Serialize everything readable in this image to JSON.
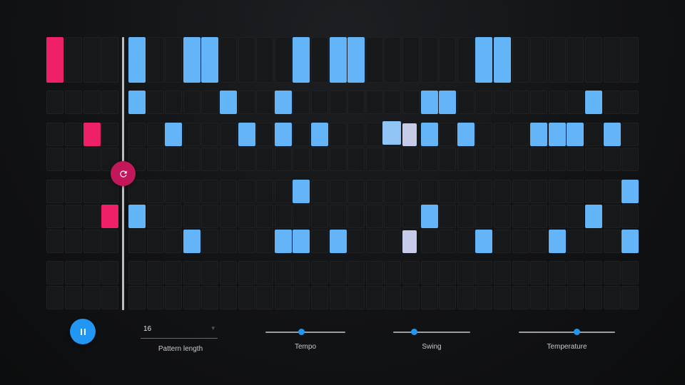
{
  "sequencer": {
    "columns": 32,
    "seed_columns": 4,
    "row_count": 9,
    "seed_cells": [
      [
        0,
        0
      ],
      [
        2,
        2
      ],
      [
        5,
        3
      ]
    ],
    "generated_cells": [
      [
        0,
        4
      ],
      [
        0,
        7
      ],
      [
        0,
        8
      ],
      [
        0,
        13
      ],
      [
        0,
        15
      ],
      [
        0,
        16
      ],
      [
        0,
        23
      ],
      [
        0,
        24
      ],
      [
        1,
        4
      ],
      [
        1,
        9
      ],
      [
        1,
        12
      ],
      [
        1,
        20
      ],
      [
        1,
        21
      ],
      [
        1,
        29
      ],
      [
        2,
        6
      ],
      [
        2,
        10
      ],
      [
        2,
        12
      ],
      [
        2,
        14
      ],
      [
        2,
        20
      ],
      [
        2,
        22
      ],
      [
        2,
        26
      ],
      [
        2,
        27
      ],
      [
        2,
        28
      ],
      [
        2,
        30
      ],
      [
        4,
        13
      ],
      [
        4,
        31
      ],
      [
        5,
        4
      ],
      [
        5,
        20
      ],
      [
        5,
        29
      ],
      [
        6,
        7
      ],
      [
        6,
        12
      ],
      [
        6,
        13
      ],
      [
        6,
        15
      ],
      [
        6,
        23
      ],
      [
        6,
        27
      ],
      [
        6,
        31
      ]
    ],
    "highlight_cells": [
      {
        "row": 2,
        "col": 18,
        "style": "hl-a"
      },
      {
        "row": 2,
        "col": 19,
        "style": "hl-b"
      },
      {
        "row": 6,
        "col": 19,
        "style": "hl-b"
      }
    ]
  },
  "controls": {
    "play_state": "playing",
    "pattern_length": {
      "value": "16",
      "label": "Pattern length"
    },
    "tempo": {
      "label": "Tempo",
      "level": 0.45
    },
    "swing": {
      "label": "Swing",
      "level": 0.27
    },
    "temperature": {
      "label": "Temperature",
      "level": 0.6
    }
  },
  "colors": {
    "seed": "#ee2067",
    "generated": "#63b5f7",
    "accent": "#2196f3",
    "regenerate": "#c2185b"
  },
  "icons": {
    "regenerate": "refresh-icon",
    "play_pause": "pause-icon"
  }
}
